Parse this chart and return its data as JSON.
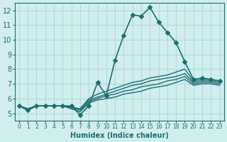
{
  "title": "",
  "xlabel": "Humidex (Indice chaleur)",
  "ylabel": "",
  "bg_color": "#d0eeee",
  "grid_color": "#b0d8d8",
  "line_color": "#1a7070",
  "xlim": [
    -0.5,
    23.5
  ],
  "ylim": [
    4.5,
    12.5
  ],
  "xticks": [
    0,
    1,
    2,
    3,
    4,
    5,
    6,
    7,
    8,
    9,
    10,
    11,
    12,
    13,
    14,
    15,
    16,
    17,
    18,
    19,
    20,
    21,
    22,
    23
  ],
  "yticks": [
    5,
    6,
    7,
    8,
    9,
    10,
    11,
    12
  ],
  "series": [
    {
      "x": [
        0,
        1,
        2,
        3,
        4,
        5,
        6,
        7,
        8,
        9,
        10,
        11,
        12,
        13,
        14,
        15,
        16,
        17,
        18,
        19,
        20,
        21,
        22,
        23
      ],
      "y": [
        5.5,
        5.2,
        5.5,
        5.5,
        5.5,
        5.5,
        5.5,
        4.9,
        5.5,
        7.1,
        6.2,
        8.6,
        10.3,
        11.7,
        11.6,
        12.2,
        11.2,
        10.5,
        9.8,
        8.5,
        7.3,
        7.4,
        7.3,
        7.2
      ],
      "marker": "D",
      "markersize": 3,
      "linewidth": 1.2,
      "zorder": 5
    },
    {
      "x": [
        0,
        1,
        2,
        3,
        4,
        5,
        6,
        7,
        8,
        9,
        10,
        11,
        12,
        13,
        14,
        15,
        16,
        17,
        18,
        19,
        20,
        21,
        22,
        23
      ],
      "y": [
        5.5,
        5.3,
        5.5,
        5.5,
        5.5,
        5.5,
        5.4,
        5.3,
        6.0,
        6.3,
        6.5,
        6.7,
        6.9,
        7.1,
        7.2,
        7.4,
        7.5,
        7.6,
        7.8,
        8.0,
        7.2,
        7.3,
        7.3,
        7.2
      ],
      "marker": null,
      "markersize": 0,
      "linewidth": 1.0,
      "zorder": 3
    },
    {
      "x": [
        0,
        1,
        2,
        3,
        4,
        5,
        6,
        7,
        8,
        9,
        10,
        11,
        12,
        13,
        14,
        15,
        16,
        17,
        18,
        19,
        20,
        21,
        22,
        23
      ],
      "y": [
        5.5,
        5.3,
        5.5,
        5.5,
        5.5,
        5.5,
        5.4,
        5.3,
        5.9,
        6.1,
        6.3,
        6.5,
        6.7,
        6.9,
        7.0,
        7.2,
        7.3,
        7.4,
        7.5,
        7.7,
        7.1,
        7.2,
        7.2,
        7.1
      ],
      "marker": null,
      "markersize": 0,
      "linewidth": 1.0,
      "zorder": 3
    },
    {
      "x": [
        0,
        1,
        2,
        3,
        4,
        5,
        6,
        7,
        8,
        9,
        10,
        11,
        12,
        13,
        14,
        15,
        16,
        17,
        18,
        19,
        20,
        21,
        22,
        23
      ],
      "y": [
        5.5,
        5.3,
        5.5,
        5.5,
        5.5,
        5.5,
        5.4,
        5.2,
        5.8,
        6.0,
        6.2,
        6.3,
        6.5,
        6.6,
        6.8,
        6.9,
        7.0,
        7.2,
        7.3,
        7.5,
        7.0,
        7.1,
        7.1,
        7.0
      ],
      "marker": null,
      "markersize": 0,
      "linewidth": 1.0,
      "zorder": 3
    },
    {
      "x": [
        0,
        1,
        2,
        3,
        4,
        5,
        6,
        7,
        8,
        9,
        10,
        11,
        12,
        13,
        14,
        15,
        16,
        17,
        18,
        19,
        20,
        21,
        22,
        23
      ],
      "y": [
        5.5,
        5.3,
        5.5,
        5.5,
        5.5,
        5.5,
        5.3,
        5.1,
        5.7,
        5.9,
        6.0,
        6.1,
        6.3,
        6.4,
        6.5,
        6.7,
        6.8,
        6.9,
        7.1,
        7.3,
        6.9,
        7.0,
        7.0,
        6.9
      ],
      "marker": null,
      "markersize": 0,
      "linewidth": 1.0,
      "zorder": 3
    }
  ]
}
